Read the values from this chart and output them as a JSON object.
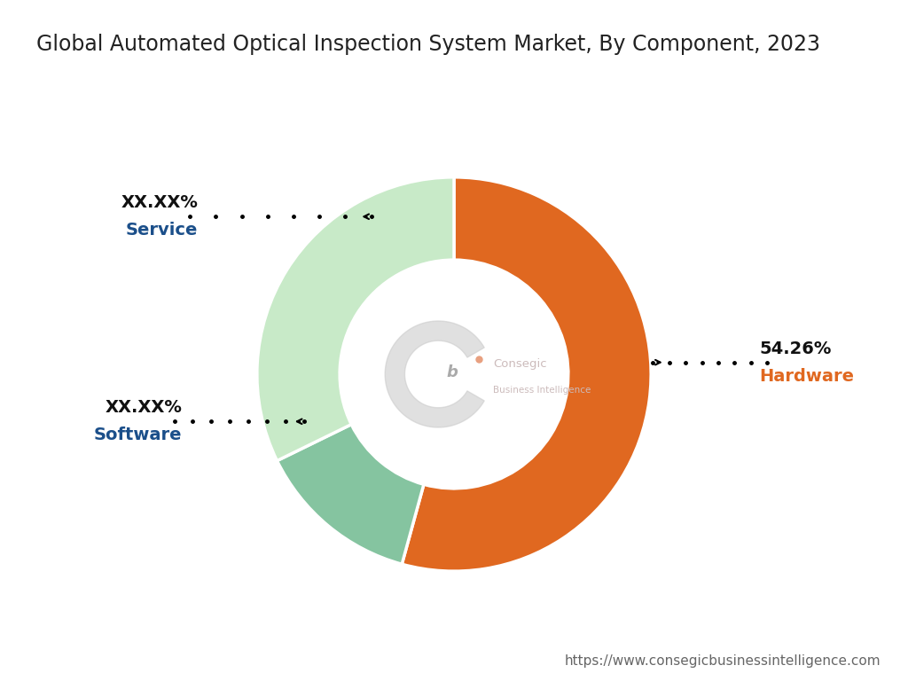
{
  "title": "Global Automated Optical Inspection System Market, By Component, 2023",
  "segments": [
    {
      "label": "Hardware",
      "value": 54.26,
      "color": "#E06820",
      "display_pct": "54.26%"
    },
    {
      "label": "Service",
      "value": 13.5,
      "color": "#85C4A0",
      "display_pct": "XX.XX%"
    },
    {
      "label": "Software",
      "value": 32.24,
      "color": "#C8EAC8",
      "display_pct": "XX.XX%"
    }
  ],
  "center_text_line1": "Consegic",
  "center_text_line2": "Business Intelligence",
  "url": "https://www.consegicbusinessintelligence.com",
  "bg_color": "#FFFFFF",
  "title_color": "#222222",
  "title_fontsize": 17,
  "label_pct_color": "#111111",
  "hardware_label_color": "#E06820",
  "service_label_color": "#1B4F8A",
  "software_label_color": "#1B4F8A",
  "label_fontsize": 14,
  "sublabel_fontsize": 14,
  "url_color": "#666666",
  "url_fontsize": 11,
  "donut_width": 0.42,
  "startangle": 90
}
